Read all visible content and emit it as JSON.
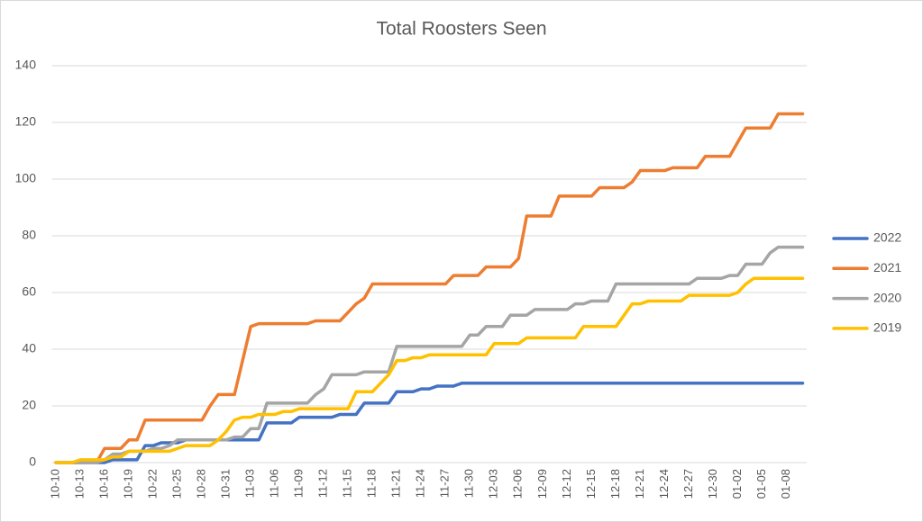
{
  "chart_data": {
    "type": "line",
    "title": "Total Roosters Seen",
    "categories": [
      "10-10",
      null,
      null,
      "10-13",
      null,
      null,
      "10-16",
      null,
      null,
      "10-19",
      null,
      null,
      "10-22",
      null,
      null,
      "10-25",
      null,
      null,
      "10-28",
      null,
      null,
      "10-31",
      null,
      null,
      "11-03",
      null,
      null,
      "11-06",
      null,
      null,
      "11-09",
      null,
      null,
      "11-12",
      null,
      null,
      "11-15",
      null,
      null,
      "11-18",
      null,
      null,
      "11-21",
      null,
      null,
      "11-24",
      null,
      null,
      "11-27",
      null,
      null,
      "11-30",
      null,
      null,
      "12-03",
      null,
      null,
      "12-06",
      null,
      null,
      "12-09",
      null,
      null,
      "12-12",
      null,
      null,
      "12-15",
      null,
      null,
      "12-18",
      null,
      null,
      "12-21",
      null,
      null,
      "12-24",
      null,
      null,
      "12-27",
      null,
      null,
      "12-30",
      null,
      null,
      "01-02",
      null,
      null,
      "01-05",
      null,
      null,
      "01-08",
      null,
      null
    ],
    "series": [
      {
        "name": "2022",
        "color": "#4472c4",
        "values": [
          0,
          0,
          0,
          0,
          0,
          0,
          0,
          1,
          1,
          1,
          1,
          6,
          6,
          7,
          7,
          7,
          8,
          8,
          8,
          8,
          8,
          8,
          8,
          8,
          8,
          8,
          14,
          14,
          14,
          14,
          16,
          16,
          16,
          16,
          16,
          17,
          17,
          17,
          21,
          21,
          21,
          21,
          25,
          25,
          25,
          26,
          26,
          27,
          27,
          27,
          28,
          28,
          28,
          28,
          28,
          28,
          28,
          28,
          28,
          28,
          28,
          28,
          28,
          28,
          28,
          28,
          28,
          28,
          28,
          28,
          28,
          28,
          28,
          28,
          28,
          28,
          28,
          28,
          28,
          28,
          28,
          28,
          28,
          28,
          28,
          28,
          28,
          28,
          28,
          28,
          28,
          28,
          28
        ]
      },
      {
        "name": "2021",
        "color": "#ed7d31",
        "values": [
          0,
          0,
          0,
          0,
          0,
          0,
          5,
          5,
          5,
          8,
          8,
          15,
          15,
          15,
          15,
          15,
          15,
          15,
          15,
          20,
          24,
          24,
          24,
          36,
          48,
          49,
          49,
          49,
          49,
          49,
          49,
          49,
          50,
          50,
          50,
          50,
          53,
          56,
          58,
          63,
          63,
          63,
          63,
          63,
          63,
          63,
          63,
          63,
          63,
          66,
          66,
          66,
          66,
          69,
          69,
          69,
          69,
          72,
          87,
          87,
          87,
          87,
          94,
          94,
          94,
          94,
          94,
          97,
          97,
          97,
          97,
          99,
          103,
          103,
          103,
          103,
          104,
          104,
          104,
          104,
          108,
          108,
          108,
          108,
          113,
          118,
          118,
          118,
          118,
          123,
          123,
          123,
          123
        ]
      },
      {
        "name": "2020",
        "color": "#a5a5a5",
        "values": [
          0,
          0,
          0,
          0,
          0,
          0,
          1,
          3,
          3,
          4,
          4,
          4,
          5,
          5,
          6,
          8,
          8,
          8,
          8,
          8,
          8,
          8,
          9,
          9,
          12,
          12,
          21,
          21,
          21,
          21,
          21,
          21,
          24,
          26,
          31,
          31,
          31,
          31,
          32,
          32,
          32,
          32,
          41,
          41,
          41,
          41,
          41,
          41,
          41,
          41,
          41,
          45,
          45,
          48,
          48,
          48,
          52,
          52,
          52,
          54,
          54,
          54,
          54,
          54,
          56,
          56,
          57,
          57,
          57,
          63,
          63,
          63,
          63,
          63,
          63,
          63,
          63,
          63,
          63,
          65,
          65,
          65,
          65,
          66,
          66,
          70,
          70,
          70,
          74,
          76,
          76,
          76,
          76
        ]
      },
      {
        "name": "2019",
        "color": "#ffc000",
        "values": [
          0,
          0,
          0,
          1,
          1,
          1,
          1,
          2,
          2,
          4,
          4,
          4,
          4,
          4,
          4,
          5,
          6,
          6,
          6,
          6,
          8,
          11,
          15,
          16,
          16,
          17,
          17,
          17,
          18,
          18,
          19,
          19,
          19,
          19,
          19,
          19,
          19,
          25,
          25,
          25,
          28,
          31,
          36,
          36,
          37,
          37,
          38,
          38,
          38,
          38,
          38,
          38,
          38,
          38,
          42,
          42,
          42,
          42,
          44,
          44,
          44,
          44,
          44,
          44,
          44,
          48,
          48,
          48,
          48,
          48,
          52,
          56,
          56,
          57,
          57,
          57,
          57,
          57,
          59,
          59,
          59,
          59,
          59,
          59,
          60,
          63,
          65,
          65,
          65,
          65,
          65,
          65,
          65
        ]
      }
    ],
    "ylim": [
      0,
      140
    ],
    "yticks": [
      0,
      20,
      40,
      60,
      80,
      100,
      120,
      140
    ],
    "grid": true,
    "legend": "right"
  }
}
